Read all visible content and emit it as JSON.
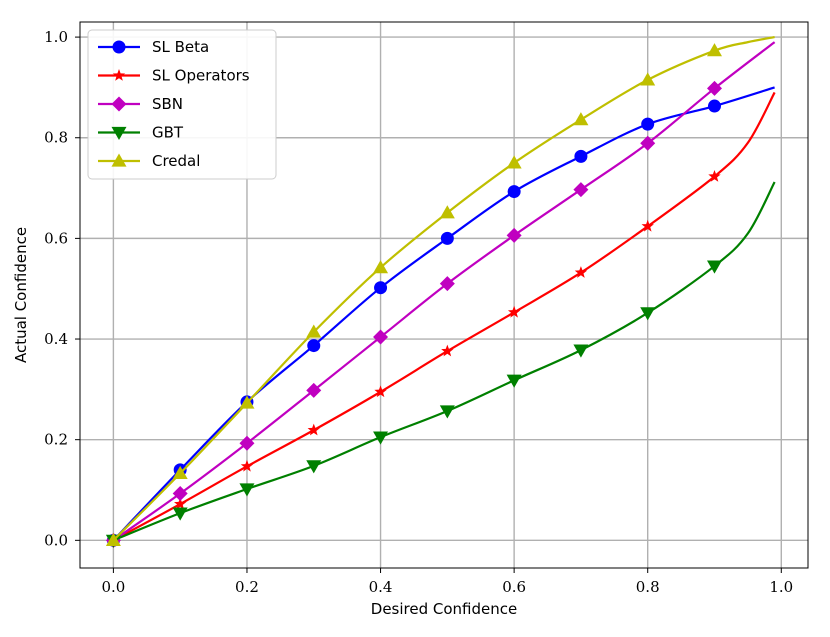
{
  "chart_data": {
    "type": "line",
    "xlabel": "Desired Confidence",
    "ylabel": "Actual Confidence",
    "xlim": [
      -0.05,
      1.04
    ],
    "ylim": [
      -0.055,
      1.03
    ],
    "grid": true,
    "legend_position": "top-left",
    "xticks": [
      "0.0",
      "0.2",
      "0.4",
      "0.6",
      "0.8",
      "1.0"
    ],
    "yticks": [
      "0.0",
      "0.2",
      "0.4",
      "0.6",
      "0.8",
      "1.0"
    ],
    "series": [
      {
        "name": "SL Beta",
        "color": "#0000ff",
        "marker": "circle",
        "x": [
          0.0,
          0.1,
          0.2,
          0.3,
          0.4,
          0.5,
          0.6,
          0.7,
          0.8,
          0.9,
          0.99
        ],
        "y": [
          0.0,
          0.14,
          0.275,
          0.387,
          0.502,
          0.6,
          0.693,
          0.763,
          0.827,
          0.863,
          0.9
        ],
        "marker_x": [
          0.0,
          0.1,
          0.2,
          0.3,
          0.4,
          0.5,
          0.6,
          0.7,
          0.8,
          0.9
        ]
      },
      {
        "name": "SL Operators",
        "color": "#ff0000",
        "marker": "star",
        "x": [
          0.0,
          0.1,
          0.2,
          0.3,
          0.4,
          0.5,
          0.6,
          0.7,
          0.8,
          0.9,
          0.95,
          0.99
        ],
        "y": [
          0.0,
          0.072,
          0.147,
          0.219,
          0.295,
          0.376,
          0.453,
          0.532,
          0.624,
          0.723,
          0.79,
          0.89
        ],
        "marker_x": [
          0.0,
          0.1,
          0.2,
          0.3,
          0.4,
          0.5,
          0.6,
          0.7,
          0.8,
          0.9
        ]
      },
      {
        "name": "SBN",
        "color": "#c000c0",
        "marker": "diamond",
        "x": [
          0.0,
          0.1,
          0.2,
          0.3,
          0.4,
          0.5,
          0.6,
          0.7,
          0.8,
          0.9,
          0.99
        ],
        "y": [
          0.0,
          0.093,
          0.193,
          0.298,
          0.404,
          0.51,
          0.606,
          0.697,
          0.789,
          0.898,
          0.99
        ],
        "marker_x": [
          0.0,
          0.1,
          0.2,
          0.3,
          0.4,
          0.5,
          0.6,
          0.7,
          0.8,
          0.9
        ]
      },
      {
        "name": "GBT",
        "color": "#008000",
        "marker": "triangle-down",
        "x": [
          0.0,
          0.1,
          0.2,
          0.3,
          0.4,
          0.5,
          0.6,
          0.7,
          0.8,
          0.9,
          0.95,
          0.99
        ],
        "y": [
          0.0,
          0.054,
          0.102,
          0.148,
          0.205,
          0.257,
          0.318,
          0.378,
          0.452,
          0.545,
          0.61,
          0.712
        ],
        "marker_x": [
          0.0,
          0.1,
          0.2,
          0.3,
          0.4,
          0.5,
          0.6,
          0.7,
          0.8,
          0.9
        ]
      },
      {
        "name": "Credal",
        "color": "#bfbf00",
        "marker": "triangle-up",
        "x": [
          0.0,
          0.1,
          0.2,
          0.3,
          0.4,
          0.5,
          0.6,
          0.7,
          0.8,
          0.9,
          0.95,
          0.99
        ],
        "y": [
          0.0,
          0.133,
          0.273,
          0.414,
          0.542,
          0.651,
          0.75,
          0.836,
          0.915,
          0.973,
          0.99,
          1.0
        ],
        "marker_x": [
          0.0,
          0.1,
          0.2,
          0.3,
          0.4,
          0.5,
          0.6,
          0.7,
          0.8,
          0.9
        ]
      }
    ]
  }
}
